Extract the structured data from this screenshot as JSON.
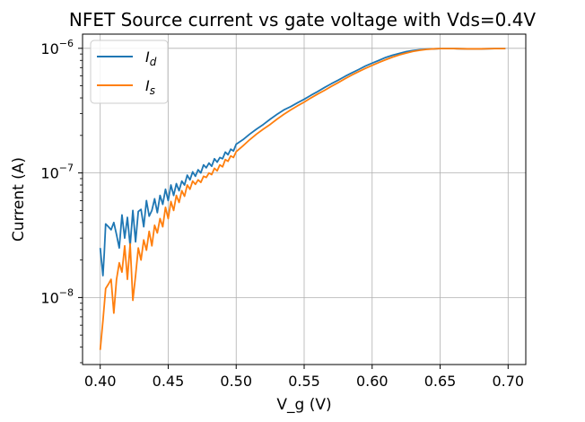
{
  "chart_data": {
    "type": "line",
    "title": "NFET Source current vs gate voltage with Vds=0.4V",
    "xlabel": "V_g (V)",
    "ylabel": "Current (A)",
    "xlim": [
      0.387,
      0.713
    ],
    "ylim": [
      2.9e-09,
      1.3e-06
    ],
    "yscale": "log",
    "grid": true,
    "legend_position": "top-left",
    "x_ticks": [
      0.4,
      0.45,
      0.5,
      0.55,
      0.6,
      0.65,
      0.7
    ],
    "x_tick_labels": [
      "0.40",
      "0.45",
      "0.50",
      "0.55",
      "0.60",
      "0.65",
      "0.70"
    ],
    "y_ticks": [
      1e-08,
      1e-07,
      1e-06
    ],
    "y_tick_base": "10",
    "y_tick_exponents": [
      "−8",
      "−7",
      "−6"
    ],
    "series": [
      {
        "name_main": "I",
        "name_sub": "d",
        "color": "#1f77b4",
        "x": [
          0.4,
          0.402,
          0.403,
          0.404,
          0.406,
          0.408,
          0.41,
          0.412,
          0.414,
          0.416,
          0.418,
          0.42,
          0.422,
          0.424,
          0.426,
          0.428,
          0.43,
          0.432,
          0.434,
          0.436,
          0.438,
          0.44,
          0.442,
          0.444,
          0.446,
          0.448,
          0.45,
          0.452,
          0.454,
          0.456,
          0.458,
          0.46,
          0.462,
          0.464,
          0.466,
          0.468,
          0.47,
          0.472,
          0.474,
          0.476,
          0.478,
          0.48,
          0.482,
          0.484,
          0.486,
          0.488,
          0.49,
          0.492,
          0.494,
          0.496,
          0.498,
          0.5,
          0.505,
          0.51,
          0.515,
          0.52,
          0.525,
          0.53,
          0.535,
          0.54,
          0.545,
          0.55,
          0.555,
          0.56,
          0.565,
          0.57,
          0.575,
          0.58,
          0.585,
          0.59,
          0.595,
          0.6,
          0.605,
          0.61,
          0.615,
          0.62,
          0.625,
          0.63,
          0.635,
          0.64,
          0.645,
          0.65,
          0.66,
          0.67,
          0.68,
          0.69,
          0.698
        ],
        "values": [
          2.5e-08,
          1.5e-08,
          2.3e-08,
          3.9e-08,
          3.7e-08,
          3.5e-08,
          4e-08,
          3.2e-08,
          2.5e-08,
          4.6e-08,
          3e-08,
          4.4e-08,
          2.6e-08,
          5e-08,
          2.8e-08,
          4.9e-08,
          5.1e-08,
          3.7e-08,
          6e-08,
          4.5e-08,
          5e-08,
          6.2e-08,
          4.8e-08,
          6.6e-08,
          5.6e-08,
          7.4e-08,
          6e-08,
          8e-08,
          6.6e-08,
          8.2e-08,
          7.2e-08,
          8.6e-08,
          8e-08,
          9.6e-08,
          8.8e-08,
          1.02e-07,
          9.4e-08,
          1.06e-07,
          1e-07,
          1.16e-07,
          1.1e-07,
          1.2e-07,
          1.13e-07,
          1.3e-07,
          1.22e-07,
          1.33e-07,
          1.3e-07,
          1.47e-07,
          1.4e-07,
          1.55e-07,
          1.5e-07,
          1.7e-07,
          1.85e-07,
          2.05e-07,
          2.25e-07,
          2.45e-07,
          2.7e-07,
          2.95e-07,
          3.2e-07,
          3.4e-07,
          3.65e-07,
          3.9e-07,
          4.2e-07,
          4.5e-07,
          4.85e-07,
          5.2e-07,
          5.55e-07,
          5.95e-07,
          6.35e-07,
          6.75e-07,
          7.2e-07,
          7.6e-07,
          8e-07,
          8.45e-07,
          8.8e-07,
          9.1e-07,
          9.4e-07,
          9.6e-07,
          9.75e-07,
          9.85e-07,
          9.9e-07,
          9.95e-07,
          9.95e-07,
          9.9e-07,
          9.9e-07,
          9.95e-07,
          9.95e-07
        ]
      },
      {
        "name_main": "I",
        "name_sub": "s",
        "color": "#ff7f0e",
        "x": [
          0.4,
          0.402,
          0.404,
          0.406,
          0.408,
          0.41,
          0.412,
          0.414,
          0.416,
          0.418,
          0.42,
          0.422,
          0.424,
          0.426,
          0.428,
          0.43,
          0.432,
          0.434,
          0.436,
          0.438,
          0.44,
          0.442,
          0.444,
          0.446,
          0.448,
          0.45,
          0.452,
          0.454,
          0.456,
          0.458,
          0.46,
          0.462,
          0.464,
          0.466,
          0.468,
          0.47,
          0.472,
          0.474,
          0.476,
          0.478,
          0.48,
          0.482,
          0.484,
          0.486,
          0.488,
          0.49,
          0.492,
          0.494,
          0.496,
          0.498,
          0.5,
          0.505,
          0.51,
          0.515,
          0.52,
          0.525,
          0.53,
          0.535,
          0.54,
          0.545,
          0.55,
          0.555,
          0.56,
          0.565,
          0.57,
          0.575,
          0.58,
          0.585,
          0.59,
          0.595,
          0.6,
          0.605,
          0.61,
          0.615,
          0.62,
          0.625,
          0.63,
          0.635,
          0.64,
          0.645,
          0.65,
          0.66,
          0.67,
          0.68,
          0.69,
          0.698
        ],
        "values": [
          3.8e-09,
          6.5e-09,
          1.18e-08,
          1.28e-08,
          1.4e-08,
          7.5e-09,
          1.4e-08,
          1.9e-08,
          1.6e-08,
          2.6e-08,
          1.4e-08,
          2.7e-08,
          9.5e-09,
          1.5e-08,
          2.5e-08,
          2e-08,
          2.9e-08,
          2.4e-08,
          3.4e-08,
          2.6e-08,
          3.8e-08,
          3.3e-08,
          4.3e-08,
          3.7e-08,
          5.3e-08,
          4.3e-08,
          5.9e-08,
          5e-08,
          6.6e-08,
          5.8e-08,
          7.2e-08,
          6.5e-08,
          8e-08,
          7.4e-08,
          8.6e-08,
          8.1e-08,
          8.8e-08,
          8.4e-08,
          9.4e-08,
          9.2e-08,
          1e-07,
          9.7e-08,
          1.09e-07,
          1.04e-07,
          1.16e-07,
          1.12e-07,
          1.28e-07,
          1.24e-07,
          1.37e-07,
          1.33e-07,
          1.48e-07,
          1.65e-07,
          1.85e-07,
          2.05e-07,
          2.25e-07,
          2.45e-07,
          2.7e-07,
          2.95e-07,
          3.2e-07,
          3.45e-07,
          3.7e-07,
          4e-07,
          4.3e-07,
          4.6e-07,
          4.95e-07,
          5.3e-07,
          5.7e-07,
          6.1e-07,
          6.5e-07,
          6.9e-07,
          7.3e-07,
          7.7e-07,
          8.1e-07,
          8.5e-07,
          8.85e-07,
          9.15e-07,
          9.45e-07,
          9.65e-07,
          9.8e-07,
          9.9e-07,
          9.95e-07,
          9.95e-07,
          9.9e-07,
          9.9e-07,
          9.95e-07,
          9.95e-07
        ]
      }
    ]
  }
}
